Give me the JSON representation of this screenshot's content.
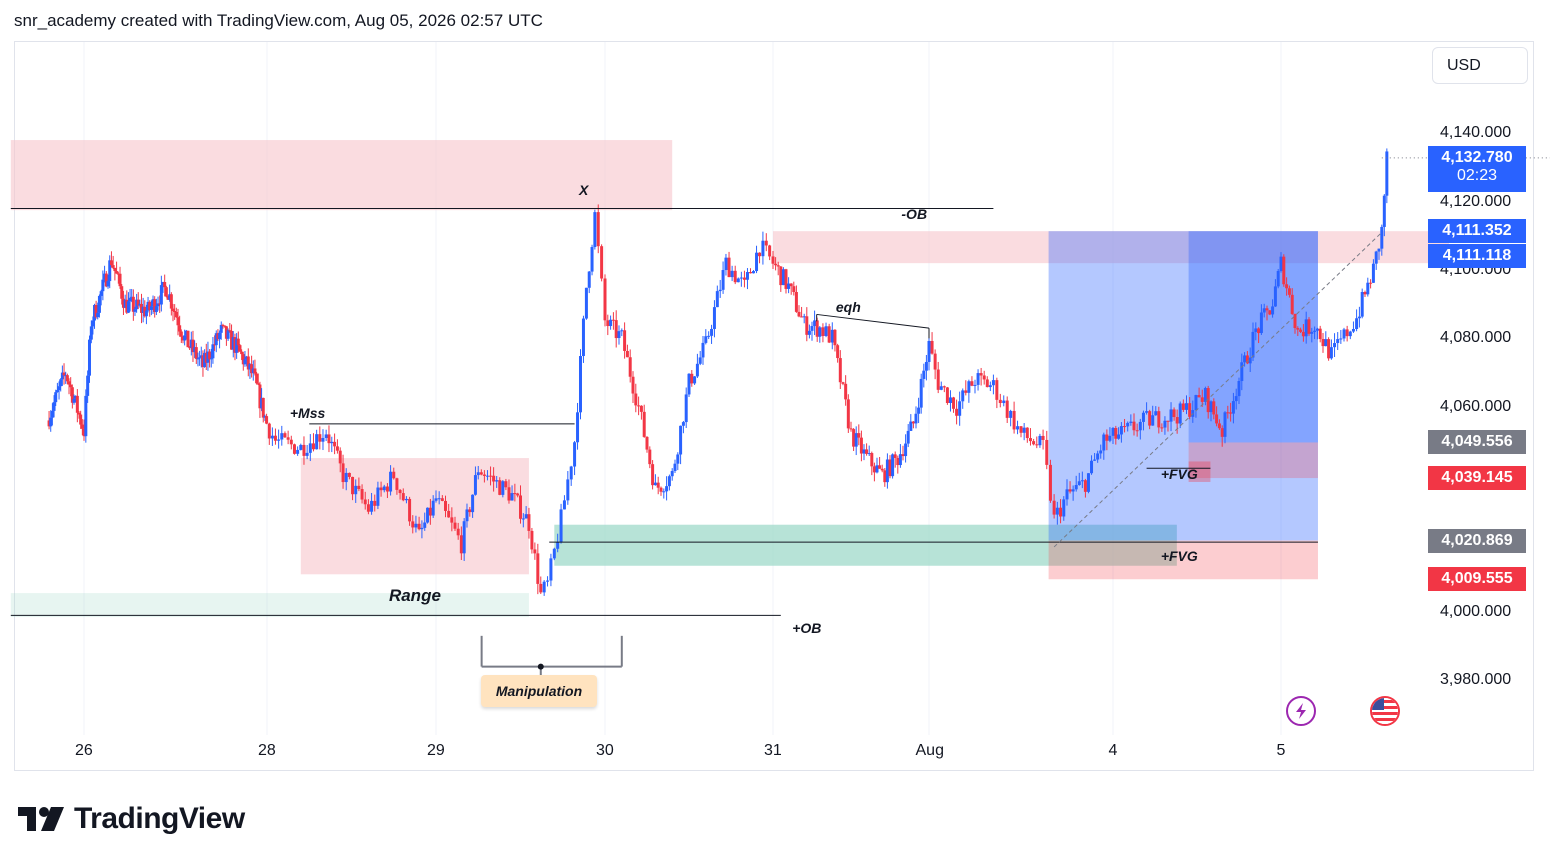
{
  "header": {
    "text": "snr_academy created with TradingView.com, Aug 05, 2026 02:57 UTC"
  },
  "currency": "USD",
  "brand": {
    "name": "TradingView"
  },
  "colors": {
    "up": "#2962ff",
    "down": "#f23645",
    "supply_zone": "#f7c5cb",
    "demand_zone": "#9fd9c9",
    "long_profit": "#2962ff",
    "long_loss": "#f23645",
    "last_price": "#2962ff"
  },
  "chart_data": {
    "type": "candlestick",
    "ylim": [
      3964,
      4162
    ],
    "y_ticks": [
      {
        "value": 4140,
        "label": "4,140.000"
      },
      {
        "value": 4120,
        "label": "4,120.000"
      },
      {
        "value": 4100,
        "label": "4,100.000"
      },
      {
        "value": 4080,
        "label": "4,080.000"
      },
      {
        "value": 4060,
        "label": "4,060.000"
      },
      {
        "value": 4000,
        "label": "4,000.000"
      },
      {
        "value": 3980,
        "label": "3,980.000"
      }
    ],
    "x_ticks": [
      {
        "t": 0,
        "label": "26"
      },
      {
        "t": 2,
        "label": "28"
      },
      {
        "t": 3,
        "label": "29"
      },
      {
        "t": 4,
        "label": "30"
      },
      {
        "t": 5,
        "label": "31"
      },
      {
        "t": 6,
        "label": "Aug"
      },
      {
        "t": 7,
        "label": "4"
      },
      {
        "t": 8,
        "label": "5"
      }
    ],
    "price_badges": [
      {
        "value": 4132.78,
        "label": "4,132.780",
        "sublabel": "02:23",
        "color": "#2962ff"
      },
      {
        "value": 4111.352,
        "label": "4,111.352",
        "color": "#2962ff"
      },
      {
        "value": 4111.118,
        "label": "4,111.118",
        "color": "#2962ff"
      },
      {
        "value": 4049.556,
        "label": "4,049.556",
        "color": "#787b86"
      },
      {
        "value": 4039.145,
        "label": "4,039.145",
        "color": "#f23645"
      },
      {
        "value": 4020.869,
        "label": "4,020.869",
        "color": "#787b86"
      },
      {
        "value": 4009.555,
        "label": "4,009.555",
        "color": "#f23645"
      }
    ],
    "path": [
      [
        -0.4,
        4056
      ],
      [
        -0.2,
        4070
      ],
      [
        0,
        4053
      ],
      [
        0.08,
        4085
      ],
      [
        0.15,
        4090
      ],
      [
        0.3,
        4103
      ],
      [
        0.45,
        4090
      ],
      [
        0.7,
        4088
      ],
      [
        0.9,
        4095
      ],
      [
        1.1,
        4080
      ],
      [
        1.3,
        4072
      ],
      [
        1.5,
        4082
      ],
      [
        1.65,
        4078
      ],
      [
        1.85,
        4069
      ],
      [
        2.05,
        4050
      ],
      [
        2.2,
        4048
      ],
      [
        2.35,
        4053
      ],
      [
        2.45,
        4040
      ],
      [
        2.6,
        4030
      ],
      [
        2.75,
        4040
      ],
      [
        2.9,
        4022
      ],
      [
        3.0,
        4033
      ],
      [
        3.15,
        4020
      ],
      [
        3.25,
        4042
      ],
      [
        3.45,
        4034
      ],
      [
        3.55,
        4026
      ],
      [
        3.62,
        4005
      ],
      [
        3.66,
        4008
      ],
      [
        3.74,
        4027
      ],
      [
        3.82,
        4050
      ],
      [
        3.89,
        4095
      ],
      [
        3.94,
        4116
      ],
      [
        4.0,
        4085
      ],
      [
        4.1,
        4080
      ],
      [
        4.2,
        4060
      ],
      [
        4.3,
        4036
      ],
      [
        4.4,
        4040
      ],
      [
        4.5,
        4067
      ],
      [
        4.6,
        4078
      ],
      [
        4.72,
        4102
      ],
      [
        4.83,
        4095
      ],
      [
        4.92,
        4107
      ],
      [
        5.0,
        4102
      ],
      [
        5.1,
        4095
      ],
      [
        5.2,
        4084
      ],
      [
        5.3,
        4083
      ],
      [
        5.38,
        4080
      ],
      [
        5.5,
        4052
      ],
      [
        5.6,
        4045
      ],
      [
        5.7,
        4040
      ],
      [
        5.8,
        4045
      ],
      [
        5.9,
        4055
      ],
      [
        6.0,
        4078
      ],
      [
        6.05,
        4067
      ],
      [
        6.15,
        4060
      ],
      [
        6.25,
        4068
      ],
      [
        6.35,
        4066
      ],
      [
        6.5,
        4052
      ],
      [
        6.62,
        4048
      ],
      [
        6.68,
        4027
      ],
      [
        6.75,
        4034
      ],
      [
        6.85,
        4038
      ],
      [
        6.95,
        4050
      ],
      [
        7.05,
        4052
      ],
      [
        7.2,
        4056
      ],
      [
        7.4,
        4058
      ],
      [
        7.55,
        4063
      ],
      [
        7.65,
        4053
      ],
      [
        7.75,
        4068
      ],
      [
        7.85,
        4082
      ],
      [
        7.95,
        4090
      ],
      [
        8.0,
        4102
      ],
      [
        8.1,
        4082
      ],
      [
        8.2,
        4084
      ],
      [
        8.3,
        4075
      ],
      [
        8.45,
        4086
      ],
      [
        8.55,
        4100
      ],
      [
        8.6,
        4111.35
      ],
      [
        8.63,
        4132.78
      ]
    ],
    "annotations": [
      {
        "text": "X",
        "t": 3.87,
        "value": 4123
      },
      {
        "text": "-OB",
        "t": 5.9,
        "value": 4116
      },
      {
        "text": "eqh",
        "t": 5.48,
        "value": 4089
      },
      {
        "text": "+Mss",
        "t": 2.23,
        "value": 4058
      },
      {
        "text": "Range",
        "t": 2.84,
        "value": 4005
      },
      {
        "text": "+FVG",
        "t": 7.38,
        "value": 4040
      },
      {
        "text": "+FVG",
        "t": 7.38,
        "value": 4016
      },
      {
        "text": "+OB",
        "t": 5.2,
        "value": 3995
      },
      {
        "text": "Manipulation",
        "t": 3.6,
        "value": 3982
      }
    ]
  }
}
